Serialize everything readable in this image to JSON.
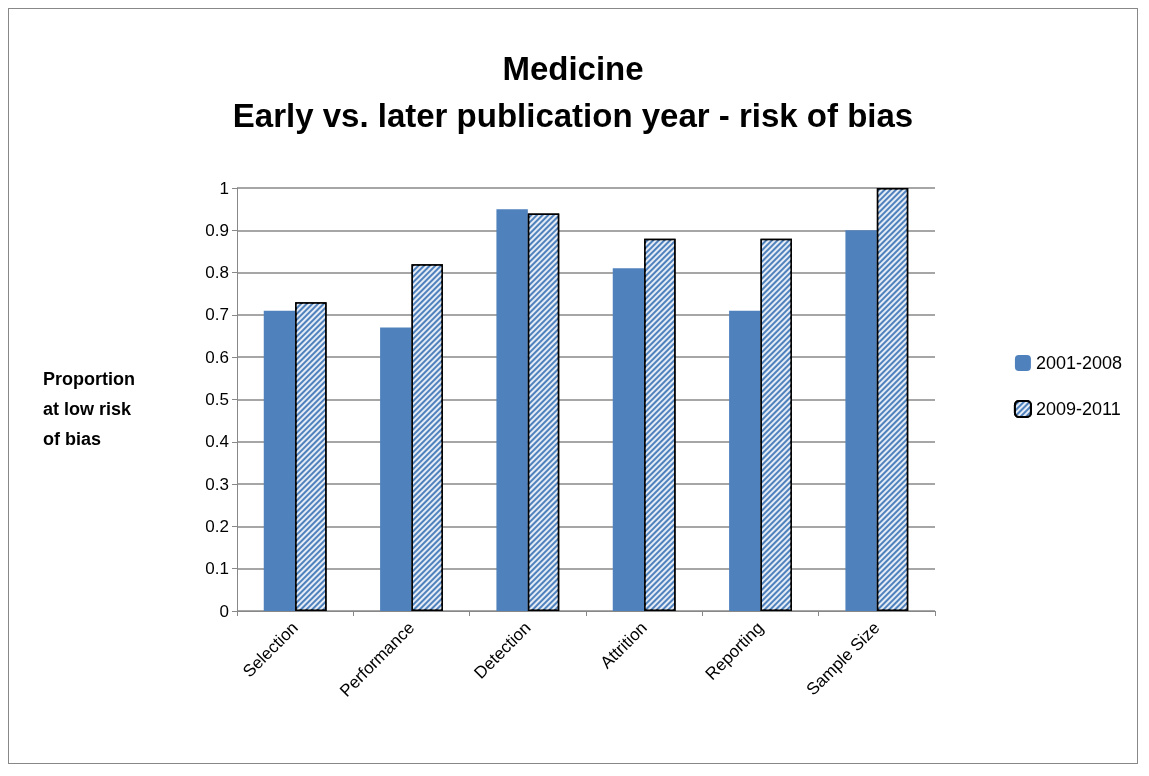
{
  "chart_data": {
    "type": "bar",
    "title": "Medicine",
    "subtitle": "Early vs. later publication year - risk of bias",
    "ylabel": "Proportion at low risk of bias",
    "categories": [
      "Selection",
      "Performance",
      "Detection",
      "Attrition",
      "Reporting",
      "Sample Size"
    ],
    "series": [
      {
        "name": "2001-2008",
        "color": "#4f81bd",
        "values": [
          0.71,
          0.67,
          0.95,
          0.81,
          0.71,
          0.9
        ]
      },
      {
        "name": "2009-2011",
        "color": "#4f81bd",
        "values": [
          0.73,
          0.82,
          0.94,
          0.88,
          0.88,
          1.0
        ]
      }
    ],
    "ylim": [
      0,
      1
    ],
    "yticks": [
      0,
      0.1,
      0.2,
      0.3,
      0.4,
      0.5,
      0.6,
      0.7,
      0.8,
      0.9,
      1
    ],
    "grid": "y",
    "legend": "right"
  }
}
